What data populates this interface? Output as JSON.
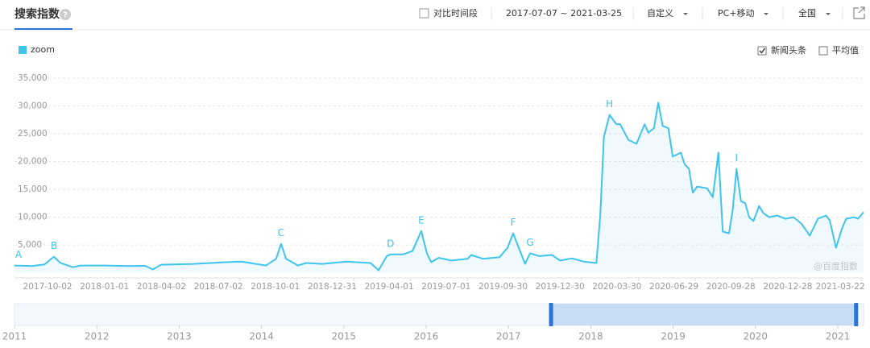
{
  "header": {
    "title": "搜索指数",
    "help": "?"
  },
  "toolbar": {
    "compare_label": "对比时间段",
    "compare_checked": false,
    "date_range": "2017-07-07 ~ 2021-03-25",
    "mode": "自定义",
    "device": "PC+移动",
    "region": "全国"
  },
  "options": {
    "news_label": "新闻头条",
    "news_checked": true,
    "avg_label": "平均值",
    "avg_checked": false
  },
  "watermark": "@百度指数",
  "chart_data": {
    "type": "line",
    "x": [
      "2017-07-07",
      "2017-08-04",
      "2017-08-24",
      "2017-09-08",
      "2017-09-18",
      "2017-10-08",
      "2017-10-21",
      "2017-11-28",
      "2018-01-06",
      "2018-02-01",
      "2018-02-13",
      "2018-02-26",
      "2018-04-19",
      "2018-06-09",
      "2018-07-05",
      "2018-08-13",
      "2018-08-29",
      "2018-09-06",
      "2018-09-14",
      "2018-10-03",
      "2018-10-16",
      "2018-11-11",
      "2018-12-19",
      "2019-01-27",
      "2019-02-09",
      "2019-02-22",
      "2019-02-28",
      "2019-03-20",
      "2019-04-04",
      "2019-04-18",
      "2019-04-27",
      "2019-05-04",
      "2019-05-16",
      "2019-06-05",
      "2019-07-01",
      "2019-07-07",
      "2019-07-26",
      "2019-08-21",
      "2019-09-03",
      "2019-09-12",
      "2019-09-22",
      "2019-10-01",
      "2019-10-09",
      "2019-10-24",
      "2019-11-13",
      "2019-11-26",
      "2019-12-15",
      "2020-01-03",
      "2020-01-23",
      "2020-01-29",
      "2020-02-04",
      "2020-02-13",
      "2020-02-24",
      "2020-03-01",
      "2020-03-14",
      "2020-03-27",
      "2020-04-09",
      "2020-04-15",
      "2020-04-24",
      "2020-05-01",
      "2020-05-08",
      "2020-05-17",
      "2020-05-24",
      "2020-06-06",
      "2020-06-12",
      "2020-06-19",
      "2020-06-25",
      "2020-07-02",
      "2020-07-18",
      "2020-07-27",
      "2020-08-05",
      "2020-08-12",
      "2020-08-22",
      "2020-08-28",
      "2020-09-03",
      "2020-09-10",
      "2020-09-17",
      "2020-09-23",
      "2020-09-30",
      "2020-10-09",
      "2020-10-16",
      "2020-10-25",
      "2020-11-07",
      "2020-11-20",
      "2020-12-03",
      "2020-12-16",
      "2020-12-29",
      "2021-01-11",
      "2021-01-24",
      "2021-01-30",
      "2021-02-09",
      "2021-02-18",
      "2021-02-25",
      "2021-03-10",
      "2021-03-16",
      "2021-03-25"
    ],
    "series": [
      {
        "name": "zoom",
        "color": "#3fc4ee",
        "values": [
          1300,
          1200,
          1500,
          2900,
          1800,
          1000,
          1300,
          1300,
          1200,
          1250,
          600,
          1450,
          1600,
          1900,
          2000,
          1300,
          2500,
          5200,
          2500,
          1300,
          1750,
          1600,
          2000,
          1750,
          450,
          3000,
          3300,
          3300,
          3900,
          7500,
          3500,
          1900,
          2700,
          2200,
          2500,
          3200,
          2500,
          2800,
          4500,
          7100,
          4200,
          1600,
          3500,
          3000,
          3200,
          2200,
          2600,
          2000,
          1750,
          10000,
          24500,
          28400,
          26700,
          26700,
          23900,
          23200,
          26700,
          25200,
          26000,
          30600,
          26400,
          26000,
          20900,
          21600,
          19500,
          18700,
          14400,
          15500,
          15200,
          13600,
          21600,
          7400,
          7100,
          11500,
          18700,
          12900,
          12500,
          10000,
          9300,
          12000,
          10700,
          10000,
          10300,
          9700,
          10000,
          8800,
          6700,
          9700,
          10300,
          9400,
          4500,
          7800,
          9700,
          10000,
          9700,
          10900
        ]
      }
    ],
    "annotations": [
      {
        "label": "A",
        "x": "2017-07-07"
      },
      {
        "label": "B",
        "x": "2017-09-08"
      },
      {
        "label": "C",
        "x": "2018-09-06"
      },
      {
        "label": "D",
        "x": "2019-02-28"
      },
      {
        "label": "E",
        "x": "2019-04-18"
      },
      {
        "label": "F",
        "x": "2019-09-12"
      },
      {
        "label": "G",
        "x": "2019-10-09"
      },
      {
        "label": "H",
        "x": "2020-02-13"
      },
      {
        "label": "I",
        "x": "2020-09-03"
      }
    ],
    "xlim": [
      "2017-07-07",
      "2021-03-25"
    ],
    "xticks": [
      "2017-10-02",
      "2018-01-01",
      "2018-04-02",
      "2018-07-02",
      "2018-10-01",
      "2018-12-31",
      "2019-04-01",
      "2019-07-01",
      "2019-09-30",
      "2019-12-30",
      "2020-03-30",
      "2020-06-29",
      "2020-09-28",
      "2020-12-28",
      "2021-03-22"
    ],
    "ylim": [
      0,
      35000
    ],
    "yticks": [
      {
        "value": 5000,
        "label": "5,000"
      },
      {
        "value": 10000,
        "label": "10,000"
      },
      {
        "value": 15000,
        "label": "15,000"
      },
      {
        "value": 20000,
        "label": "20,000"
      },
      {
        "value": 25000,
        "label": "25,000"
      },
      {
        "value": 30000,
        "label": "30,000"
      },
      {
        "value": 35000,
        "label": "35,000"
      }
    ],
    "grid": true,
    "navigator_years": [
      2011,
      2012,
      2013,
      2014,
      2015,
      2016,
      2017,
      2018,
      2019,
      2020,
      2021
    ]
  }
}
